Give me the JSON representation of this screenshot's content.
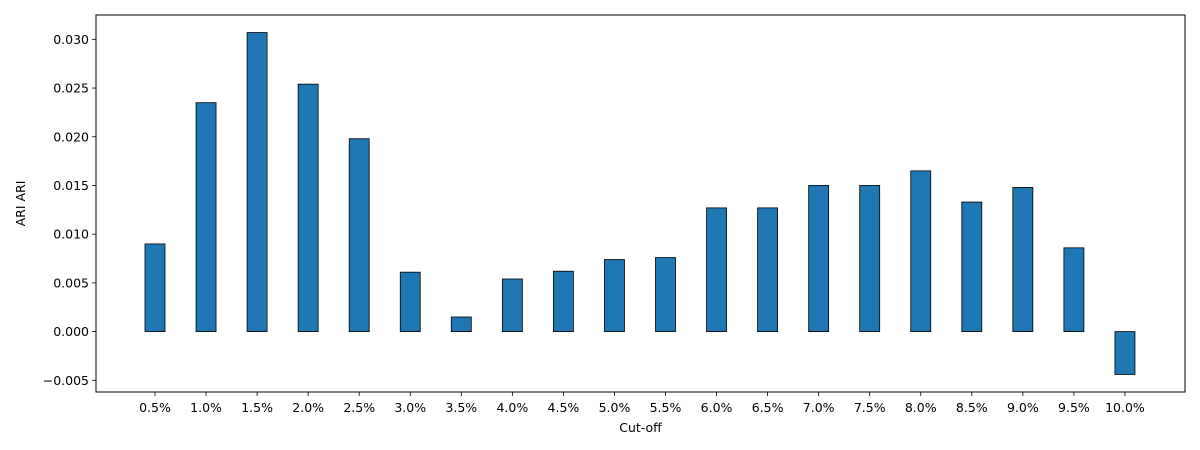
{
  "chart_data": {
    "type": "bar",
    "title": "",
    "xlabel": "Cut-off",
    "ylabel": "ARI ARI",
    "categories": [
      "0.5%",
      "1.0%",
      "1.5%",
      "2.0%",
      "2.5%",
      "3.0%",
      "3.5%",
      "4.0%",
      "4.5%",
      "5.0%",
      "5.5%",
      "6.0%",
      "6.5%",
      "7.0%",
      "7.5%",
      "8.0%",
      "8.5%",
      "9.0%",
      "9.5%",
      "10.0%"
    ],
    "values": [
      0.009,
      0.0235,
      0.0307,
      0.0254,
      0.0198,
      0.0061,
      0.0015,
      0.0054,
      0.0062,
      0.0074,
      0.0076,
      0.0127,
      0.0127,
      0.015,
      0.015,
      0.0165,
      0.0133,
      0.0148,
      0.0086,
      -0.0044
    ],
    "ylim": [
      -0.0062,
      0.0325
    ],
    "yticks": [
      -0.005,
      0.0,
      0.005,
      0.01,
      0.015,
      0.02,
      0.025,
      0.03
    ],
    "ytick_labels": [
      "−0.005",
      "0.000",
      "0.005",
      "0.010",
      "0.015",
      "0.020",
      "0.025",
      "0.030"
    ],
    "grid": false,
    "bar_color": "#1f77b4",
    "edge_color": "#000000"
  }
}
